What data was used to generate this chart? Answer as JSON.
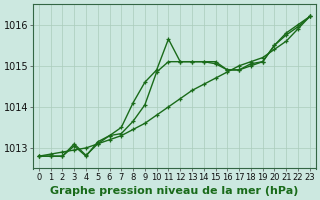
{
  "title": "Graphe pression niveau de la mer (hPa)",
  "bg_color": "#cce8e0",
  "plot_bg_color": "#cce8e0",
  "grid_color": "#aaccbb",
  "line_color": "#1a6b1a",
  "x_min": 0,
  "x_max": 23,
  "y_min": 1012.5,
  "y_max": 1016.5,
  "yticks": [
    1013,
    1014,
    1015,
    1016
  ],
  "xticks": [
    0,
    1,
    2,
    3,
    4,
    5,
    6,
    7,
    8,
    9,
    10,
    11,
    12,
    13,
    14,
    15,
    16,
    17,
    18,
    19,
    20,
    21,
    22,
    23
  ],
  "series": [
    {
      "x": [
        0,
        1,
        2,
        3,
        4,
        5,
        6,
        7,
        8,
        9,
        10,
        11,
        12,
        13,
        14,
        15,
        16,
        17,
        18,
        19,
        20,
        21,
        22,
        23
      ],
      "y": [
        1012.8,
        1012.8,
        1012.8,
        1013.05,
        1012.8,
        1013.15,
        1013.3,
        1013.5,
        1014.1,
        1014.6,
        1014.9,
        1015.65,
        1015.1,
        1015.1,
        1015.1,
        1015.05,
        1014.9,
        1014.9,
        1015.0,
        1015.1,
        1015.5,
        1015.75,
        1015.95,
        1016.2
      ]
    },
    {
      "x": [
        0,
        1,
        2,
        3,
        4,
        5,
        6,
        7,
        8,
        9,
        10,
        11,
        12,
        13,
        14,
        15,
        16,
        17,
        18,
        19,
        20,
        21,
        22,
        23
      ],
      "y": [
        1012.8,
        1012.8,
        1012.8,
        1013.1,
        1012.82,
        1013.1,
        1013.3,
        1013.35,
        1013.65,
        1014.05,
        1014.85,
        1015.1,
        1015.1,
        1015.1,
        1015.1,
        1015.1,
        1014.9,
        1014.9,
        1015.05,
        1015.1,
        1015.5,
        1015.8,
        1016.0,
        1016.2
      ]
    },
    {
      "x": [
        0,
        1,
        2,
        3,
        4,
        5,
        6,
        7,
        8,
        9,
        10,
        11,
        12,
        13,
        14,
        15,
        16,
        17,
        18,
        19,
        20,
        21,
        22,
        23
      ],
      "y": [
        1012.8,
        1012.85,
        1012.9,
        1012.95,
        1013.0,
        1013.1,
        1013.2,
        1013.3,
        1013.45,
        1013.6,
        1013.8,
        1014.0,
        1014.2,
        1014.4,
        1014.55,
        1014.7,
        1014.85,
        1015.0,
        1015.1,
        1015.2,
        1015.4,
        1015.6,
        1015.9,
        1016.2
      ]
    }
  ],
  "title_fontsize": 8,
  "tick_fontsize": 6,
  "line_width": 1.0,
  "marker_size": 3.5
}
